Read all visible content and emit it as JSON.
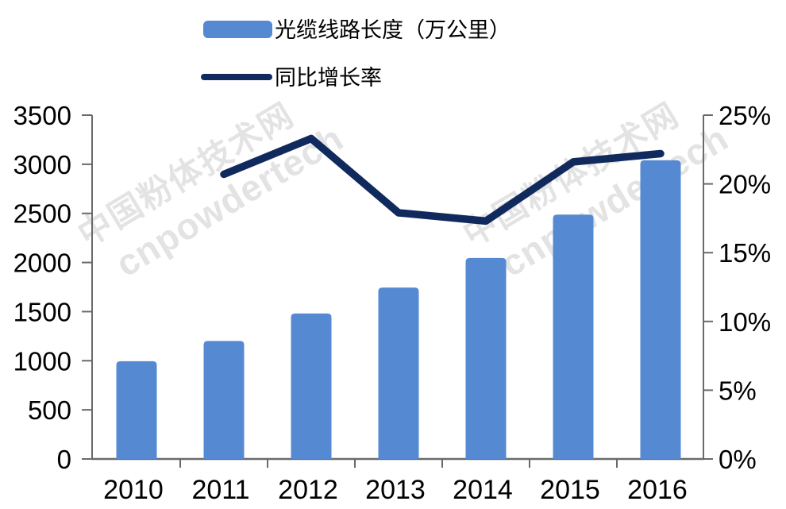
{
  "page": {
    "background": "#ffffff"
  },
  "legend": {
    "items": [
      {
        "label": "光缆线路长度（万公里）",
        "swatch": "bar",
        "color": "#558AD3"
      },
      {
        "label": "同比增长率",
        "swatch": "line",
        "color": "#112A5E"
      }
    ]
  },
  "watermarks": [
    {
      "line1": "中国粉体技术网",
      "line2": "cnpowdertech"
    },
    {
      "line1": "中国粉体技术网",
      "line2": "cnpowdertech"
    }
  ],
  "watermark_color": "#e0e0e0",
  "chart_data": {
    "type": "bar+line combo",
    "categories": [
      "2010",
      "2011",
      "2012",
      "2013",
      "2014",
      "2015",
      "2016"
    ],
    "series": [
      {
        "name": "光缆线路长度（万公里）",
        "type": "bar",
        "axis": "left",
        "color": "#558AD3",
        "values": [
          995,
          1201,
          1481,
          1745,
          2046,
          2488,
          3041
        ]
      },
      {
        "name": "同比增长率",
        "type": "line",
        "axis": "right",
        "color": "#112A5E",
        "unit": "%",
        "values": [
          null,
          20.7,
          23.3,
          17.9,
          17.3,
          21.6,
          22.2
        ]
      }
    ],
    "left_axis": {
      "min": 0,
      "max": 3500,
      "step": 500,
      "tick_labels": [
        "0",
        "500",
        "1000",
        "1500",
        "2000",
        "2500",
        "3000",
        "3500"
      ]
    },
    "right_axis": {
      "min": 0,
      "max": 25,
      "step": 5,
      "unit": "%",
      "tick_labels": [
        "0%",
        "5%",
        "10%",
        "15%",
        "20%",
        "25%"
      ]
    },
    "grid": false,
    "legend_position": "top-left",
    "axis_color": "#6a6a6a",
    "label_color": "#000000"
  }
}
